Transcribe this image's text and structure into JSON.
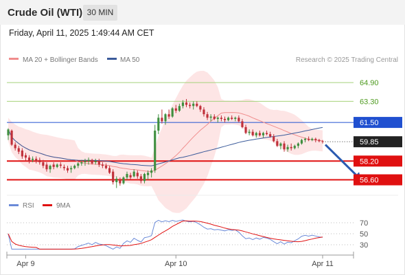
{
  "header": {
    "title": "Crude Oil (WTI)",
    "timeframe": "30 MIN"
  },
  "timestamp": "Friday, April 11, 2025 1:49:44 AM CET",
  "legend": {
    "ma20_label": "MA 20 + Bollinger Bands",
    "ma50_label": "MA 50",
    "copyright": "Research © 2025 Trading Central",
    "rsi_label": "RSI",
    "rsi_ma_label": "9MA"
  },
  "colors": {
    "bull": "#3f8f3f",
    "bear": "#c0303a",
    "ma20": "#f08c8c",
    "bb_fill": "#fde0e0",
    "ma50": "#3a5a9a",
    "resistance": "#a4d27a",
    "pivot": "#2050d0",
    "support": "#e01010",
    "price_tag": "#222222",
    "rsi": "#6a8ad8",
    "rsi_ma": "#e01010",
    "arrow": "#2a5ab0"
  },
  "chart_data": {
    "type": "candlestick",
    "price_axis": {
      "ylim": [
        55.4,
        66.2
      ]
    },
    "x_labels": [
      {
        "label": "Apr 9",
        "index": 5
      },
      {
        "label": "Apr 10",
        "index": 48
      },
      {
        "label": "Apr 11",
        "index": 90
      }
    ],
    "levels": [
      {
        "name": "resistance-2",
        "value": 64.9,
        "label": "64.90",
        "kind": "resistance"
      },
      {
        "name": "resistance-1",
        "value": 63.3,
        "label": "63.30",
        "kind": "resistance"
      },
      {
        "name": "pivot",
        "value": 61.5,
        "label": "61.50",
        "kind": "pivot"
      },
      {
        "name": "last-price",
        "value": 59.85,
        "label": "59.85",
        "kind": "last"
      },
      {
        "name": "support-1",
        "value": 58.2,
        "label": "58.20",
        "kind": "support"
      },
      {
        "name": "support-2",
        "value": 56.6,
        "label": "56.60",
        "kind": "support"
      }
    ],
    "candles": [
      [
        60.4,
        61.0,
        60.0,
        60.9
      ],
      [
        60.8,
        60.9,
        59.5,
        59.6
      ],
      [
        59.6,
        59.8,
        59.1,
        59.3
      ],
      [
        59.3,
        59.5,
        58.8,
        59.0
      ],
      [
        59.1,
        59.3,
        58.4,
        58.6
      ],
      [
        58.7,
        58.9,
        58.2,
        58.5
      ],
      [
        58.5,
        58.7,
        58.0,
        58.2
      ],
      [
        58.3,
        58.6,
        58.1,
        58.4
      ],
      [
        58.4,
        58.6,
        58.0,
        58.2
      ],
      [
        58.3,
        58.5,
        57.9,
        58.1
      ],
      [
        58.1,
        58.3,
        57.6,
        57.8
      ],
      [
        57.9,
        58.1,
        57.3,
        57.5
      ],
      [
        57.5,
        57.9,
        57.2,
        57.8
      ],
      [
        57.9,
        58.1,
        57.5,
        57.7
      ],
      [
        57.7,
        58.0,
        57.6,
        57.9
      ],
      [
        57.9,
        58.1,
        57.6,
        57.8
      ],
      [
        57.7,
        57.9,
        57.4,
        57.6
      ],
      [
        57.6,
        57.8,
        57.2,
        57.4
      ],
      [
        57.5,
        57.8,
        57.2,
        57.6
      ],
      [
        57.6,
        57.9,
        57.5,
        57.8
      ],
      [
        57.8,
        58.1,
        57.6,
        58.0
      ],
      [
        58.0,
        58.3,
        57.8,
        58.1
      ],
      [
        58.1,
        58.4,
        57.8,
        58.2
      ],
      [
        58.2,
        58.5,
        57.9,
        58.3
      ],
      [
        58.3,
        58.4,
        57.9,
        58.0
      ],
      [
        58.1,
        58.4,
        57.9,
        58.2
      ],
      [
        58.2,
        58.4,
        57.7,
        57.9
      ],
      [
        57.9,
        58.1,
        57.6,
        57.8
      ],
      [
        57.8,
        58.0,
        57.5,
        57.6
      ],
      [
        57.6,
        57.8,
        57.1,
        57.2
      ],
      [
        57.3,
        57.5,
        56.2,
        56.4
      ],
      [
        56.4,
        56.9,
        55.9,
        56.7
      ],
      [
        56.6,
        56.8,
        56.1,
        56.3
      ],
      [
        56.3,
        56.9,
        56.2,
        56.8
      ],
      [
        56.8,
        57.3,
        56.6,
        57.1
      ],
      [
        57.0,
        57.2,
        56.6,
        56.8
      ],
      [
        56.9,
        57.5,
        56.8,
        57.3
      ],
      [
        57.2,
        57.4,
        56.7,
        56.9
      ],
      [
        56.9,
        57.1,
        56.3,
        56.5
      ],
      [
        56.5,
        57.2,
        56.3,
        57.1
      ],
      [
        57.0,
        57.4,
        56.6,
        57.2
      ],
      [
        57.2,
        57.6,
        56.8,
        57.4
      ],
      [
        57.4,
        61.3,
        57.2,
        60.8
      ],
      [
        60.8,
        62.2,
        60.5,
        61.9
      ],
      [
        61.9,
        62.6,
        61.4,
        61.6
      ],
      [
        61.6,
        62.3,
        61.3,
        62.2
      ],
      [
        62.2,
        62.6,
        61.8,
        62.0
      ],
      [
        62.0,
        62.8,
        61.9,
        62.7
      ],
      [
        62.7,
        63.0,
        62.3,
        62.5
      ],
      [
        62.5,
        63.1,
        62.4,
        62.9
      ],
      [
        62.9,
        63.4,
        62.7,
        63.2
      ],
      [
        63.2,
        63.5,
        62.8,
        63.0
      ],
      [
        63.0,
        63.2,
        62.7,
        62.9
      ],
      [
        62.9,
        63.3,
        62.6,
        63.1
      ],
      [
        63.1,
        63.3,
        62.8,
        62.9
      ],
      [
        62.9,
        63.0,
        62.4,
        62.6
      ],
      [
        62.6,
        62.8,
        62.0,
        62.2
      ],
      [
        62.2,
        62.4,
        61.7,
        61.9
      ],
      [
        61.9,
        62.2,
        61.6,
        62.0
      ],
      [
        62.0,
        62.2,
        61.7,
        61.8
      ],
      [
        61.8,
        62.0,
        61.5,
        61.9
      ],
      [
        61.9,
        62.1,
        61.6,
        61.8
      ],
      [
        61.8,
        62.0,
        61.5,
        61.7
      ],
      [
        61.7,
        62.0,
        61.6,
        61.9
      ],
      [
        61.9,
        62.1,
        61.7,
        61.8
      ],
      [
        61.8,
        62.0,
        61.6,
        61.9
      ],
      [
        61.9,
        62.1,
        61.5,
        61.6
      ],
      [
        61.6,
        61.8,
        61.0,
        61.1
      ],
      [
        61.1,
        61.3,
        60.5,
        60.6
      ],
      [
        60.6,
        60.9,
        60.4,
        60.7
      ],
      [
        60.7,
        60.9,
        60.3,
        60.4
      ],
      [
        60.4,
        60.7,
        60.2,
        60.6
      ],
      [
        60.6,
        60.8,
        60.3,
        60.4
      ],
      [
        60.4,
        60.7,
        60.2,
        60.6
      ],
      [
        60.6,
        60.8,
        60.4,
        60.5
      ],
      [
        60.5,
        60.7,
        60.2,
        60.3
      ],
      [
        60.3,
        60.5,
        59.8,
        59.9
      ],
      [
        59.9,
        60.1,
        59.4,
        59.5
      ],
      [
        59.5,
        59.8,
        59.2,
        59.7
      ],
      [
        59.7,
        59.9,
        59.0,
        59.2
      ],
      [
        59.2,
        59.6,
        59.0,
        59.4
      ],
      [
        59.4,
        59.7,
        59.1,
        59.3
      ],
      [
        59.3,
        59.6,
        59.2,
        59.5
      ],
      [
        59.5,
        59.8,
        59.3,
        59.7
      ],
      [
        59.7,
        60.1,
        59.6,
        60.0
      ],
      [
        60.0,
        60.2,
        59.8,
        60.1
      ],
      [
        60.1,
        60.3,
        59.9,
        60.0
      ],
      [
        60.0,
        60.2,
        59.9,
        60.1
      ],
      [
        60.1,
        60.2,
        59.8,
        60.0
      ],
      [
        60.0,
        60.1,
        59.8,
        59.9
      ],
      [
        59.9,
        60.0,
        59.7,
        59.85
      ]
    ],
    "rsi": {
      "ylim": [
        15,
        85
      ],
      "levels": [
        {
          "value": 70,
          "label": "70"
        },
        {
          "value": 50,
          "label": "50"
        },
        {
          "value": 30,
          "label": "30"
        }
      ]
    },
    "forecast_arrow": {
      "from": {
        "index": 90,
        "price": 59.6
      },
      "to": {
        "index": 101,
        "price": 56.6
      }
    }
  }
}
